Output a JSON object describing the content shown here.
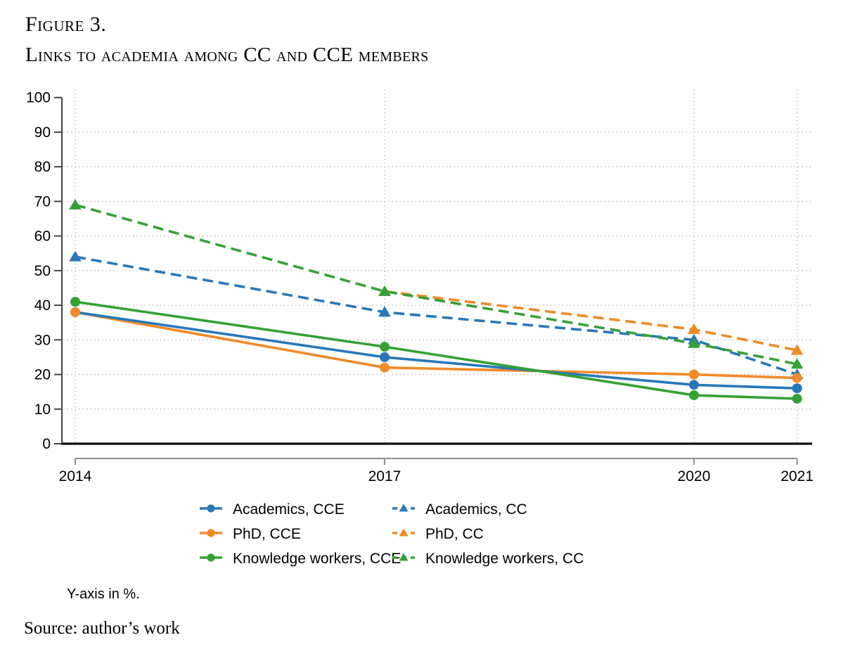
{
  "figure": {
    "label": "Figure 3.",
    "title": "Links to academia among CC and CCE members",
    "note": "Y-axis in %.",
    "source": "Source: author’s work"
  },
  "chart_data": {
    "type": "line",
    "title": "Links to academia among CC and CCE members",
    "x": [
      2014,
      2017,
      2020,
      2021
    ],
    "x_tick_labels": [
      "2014",
      "2017",
      "2020",
      "2021"
    ],
    "y_ticks": [
      0,
      10,
      20,
      30,
      40,
      50,
      60,
      70,
      80,
      90,
      100
    ],
    "ylim": [
      0,
      100
    ],
    "xlabel": "",
    "ylabel": "Y-axis in %.",
    "grid": true,
    "legend_position": "bottom",
    "colors": {
      "blue": "#2878b8",
      "orange": "#f08a28",
      "green": "#35a135"
    },
    "series": [
      {
        "name": "Academics, CCE",
        "color": "#2878b8",
        "dash": "solid",
        "marker": "circle",
        "values": [
          38,
          25,
          17,
          16
        ]
      },
      {
        "name": "PhD, CCE",
        "color": "#f08a28",
        "dash": "solid",
        "marker": "circle",
        "values": [
          38,
          22,
          20,
          19
        ]
      },
      {
        "name": "Knowledge workers, CCE",
        "color": "#35a135",
        "dash": "solid",
        "marker": "circle",
        "values": [
          41,
          28,
          14,
          13
        ]
      },
      {
        "name": "Academics, CC",
        "color": "#2878b8",
        "dash": "dashed",
        "marker": "triangle",
        "values": [
          54,
          38,
          30,
          20
        ]
      },
      {
        "name": "PhD, CC",
        "color": "#f08a28",
        "dash": "dashed",
        "marker": "triangle",
        "values": [
          null,
          44,
          33,
          27
        ]
      },
      {
        "name": "Knowledge workers, CC",
        "color": "#35a135",
        "dash": "dashed",
        "marker": "triangle",
        "values": [
          69,
          44,
          29,
          23
        ]
      }
    ]
  }
}
